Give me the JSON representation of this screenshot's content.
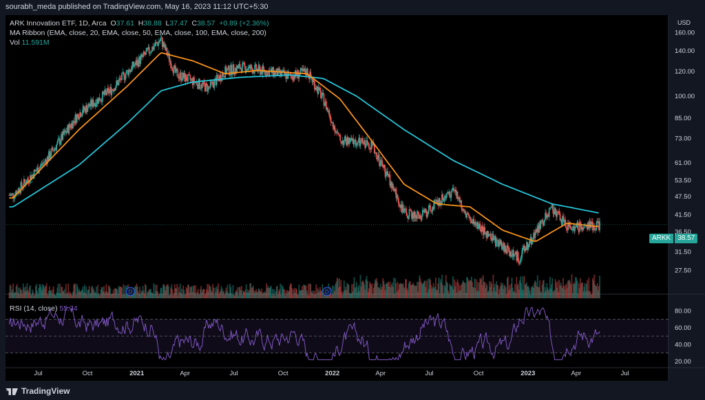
{
  "header": {
    "publisher": "sourabh_meda published on TradingView.com, May 16, 2023 11:12 UTC+5:30"
  },
  "legend": {
    "instrument": "ARK Innovation ETF, 1D, Arca",
    "o_label": "O",
    "o_value": "37.61",
    "h_label": "H",
    "h_value": "38.88",
    "l_label": "L",
    "l_value": "37.47",
    "c_label": "C",
    "c_value": "38.57",
    "change": "+0.89 (+2.36%)",
    "ma_ribbon": "MA Ribbon (EMA, close, 20, EMA, close, 50, EMA, close, 100, EMA, close, 200)",
    "vol_label": "Vol",
    "vol_value": "11.591M",
    "rsi_label": "RSI (14, close)",
    "rsi_value": "55.74"
  },
  "price_tag": {
    "symbol": "ARKK",
    "value": "38.57"
  },
  "footer": {
    "brand": "TradingView"
  },
  "colors": {
    "up": "#26a69a",
    "down": "#ef5350",
    "ema_fast": "#f7931a",
    "ema_slow": "#26c6da",
    "rsi": "#7e57c2",
    "rsi_band": "rgba(126,87,194,0.12)",
    "axis_text": "#d1d4dc"
  },
  "chart_data": [
    {
      "type": "candlestick",
      "currency": "USD",
      "price_axis_ticks": [
        160.0,
        140.0,
        120.0,
        100.0,
        85.0,
        73.0,
        61.0,
        53.5,
        47.5,
        41.5,
        36.5,
        31.5,
        27.5
      ],
      "price_axis_label": "USD",
      "scale": "log",
      "x_axis_ticks": [
        "Jul",
        "Oct",
        "2021",
        "Apr",
        "Jul",
        "Oct",
        "2022",
        "Apr",
        "Jul",
        "Oct",
        "2023",
        "Apr",
        "Jul"
      ],
      "close_series_approx": [
        {
          "t": "2020-05",
          "c": 48
        },
        {
          "t": "2020-07",
          "c": 62
        },
        {
          "t": "2020-09",
          "c": 88
        },
        {
          "t": "2020-11",
          "c": 105
        },
        {
          "t": "2020-12",
          "c": 120
        },
        {
          "t": "2021-02",
          "c": 152
        },
        {
          "t": "2021-03",
          "c": 118
        },
        {
          "t": "2021-05",
          "c": 106
        },
        {
          "t": "2021-06",
          "c": 120
        },
        {
          "t": "2021-07",
          "c": 124
        },
        {
          "t": "2021-09",
          "c": 119
        },
        {
          "t": "2021-10",
          "c": 116
        },
        {
          "t": "2021-11",
          "c": 120
        },
        {
          "t": "2021-12",
          "c": 98
        },
        {
          "t": "2022-01",
          "c": 72
        },
        {
          "t": "2022-03",
          "c": 70
        },
        {
          "t": "2022-04",
          "c": 55
        },
        {
          "t": "2022-05",
          "c": 42
        },
        {
          "t": "2022-06",
          "c": 41
        },
        {
          "t": "2022-08",
          "c": 50
        },
        {
          "t": "2022-09",
          "c": 40
        },
        {
          "t": "2022-10",
          "c": 36
        },
        {
          "t": "2022-12",
          "c": 30
        },
        {
          "t": "2023-02",
          "c": 44
        },
        {
          "t": "2023-03",
          "c": 38
        },
        {
          "t": "2023-04",
          "c": 38
        },
        {
          "t": "2023-05",
          "c": 38.57
        }
      ],
      "ema_fast_approx": [
        {
          "t": "2020-05",
          "v": 47
        },
        {
          "t": "2020-09",
          "v": 78
        },
        {
          "t": "2020-12",
          "v": 108
        },
        {
          "t": "2021-02",
          "v": 138
        },
        {
          "t": "2021-04",
          "v": 130
        },
        {
          "t": "2021-06",
          "v": 118
        },
        {
          "t": "2021-08",
          "v": 121
        },
        {
          "t": "2021-11",
          "v": 118
        },
        {
          "t": "2022-01",
          "v": 98
        },
        {
          "t": "2022-03",
          "v": 72
        },
        {
          "t": "2022-05",
          "v": 52
        },
        {
          "t": "2022-07",
          "v": 45
        },
        {
          "t": "2022-09",
          "v": 44
        },
        {
          "t": "2022-11",
          "v": 37
        },
        {
          "t": "2023-01",
          "v": 34
        },
        {
          "t": "2023-03",
          "v": 39
        },
        {
          "t": "2023-05",
          "v": 38
        }
      ],
      "ema_slow_approx": [
        {
          "t": "2020-05",
          "v": 44
        },
        {
          "t": "2020-09",
          "v": 60
        },
        {
          "t": "2020-12",
          "v": 82
        },
        {
          "t": "2021-02",
          "v": 104
        },
        {
          "t": "2021-04",
          "v": 111
        },
        {
          "t": "2021-07",
          "v": 115
        },
        {
          "t": "2021-10",
          "v": 117
        },
        {
          "t": "2021-12",
          "v": 114
        },
        {
          "t": "2022-02",
          "v": 100
        },
        {
          "t": "2022-05",
          "v": 78
        },
        {
          "t": "2022-08",
          "v": 62
        },
        {
          "t": "2022-11",
          "v": 52
        },
        {
          "t": "2023-02",
          "v": 45
        },
        {
          "t": "2023-05",
          "v": 42
        }
      ],
      "last_price": 38.57
    },
    {
      "type": "line",
      "name": "RSI (14, close)",
      "y_axis_ticks": [
        80.0,
        60.0,
        40.0,
        20.0
      ],
      "band": [
        30,
        70
      ],
      "midline": 50,
      "last_value": 55.74
    }
  ]
}
